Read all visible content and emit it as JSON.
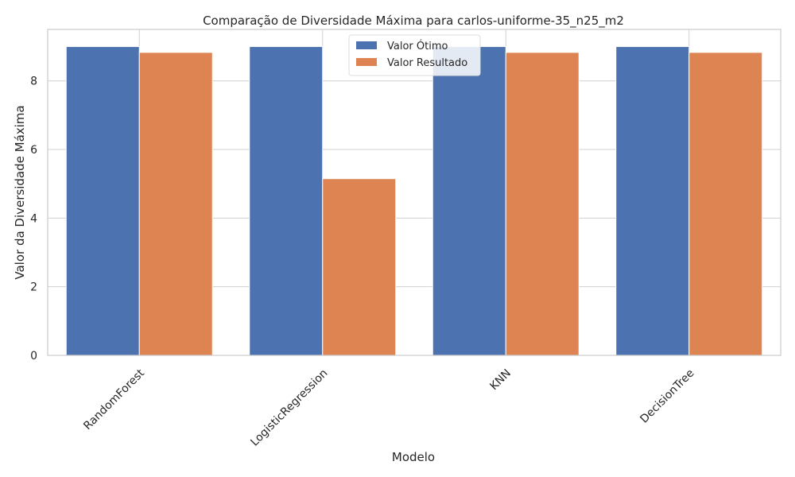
{
  "chart_data": {
    "type": "bar",
    "title": "Comparação de Diversidade Máxima para carlos-uniforme-35_n25_m2",
    "xlabel": "Modelo",
    "ylabel": "Valor da Diversidade Máxima",
    "categories": [
      "RandomForest",
      "LogisticRegression",
      "KNN",
      "DecisionTree"
    ],
    "series": [
      {
        "name": "Valor Ótimo",
        "color": "#4c72b0",
        "values": [
          9.0,
          9.0,
          9.0,
          9.0
        ]
      },
      {
        "name": "Valor Resultado",
        "color": "#dd8452",
        "values": [
          8.83,
          5.15,
          8.83,
          8.83
        ]
      }
    ],
    "ylim": [
      0,
      9.5
    ],
    "yticks": [
      "0",
      "2",
      "4",
      "6",
      "8"
    ],
    "grid": true,
    "legend_position": "top-center"
  }
}
